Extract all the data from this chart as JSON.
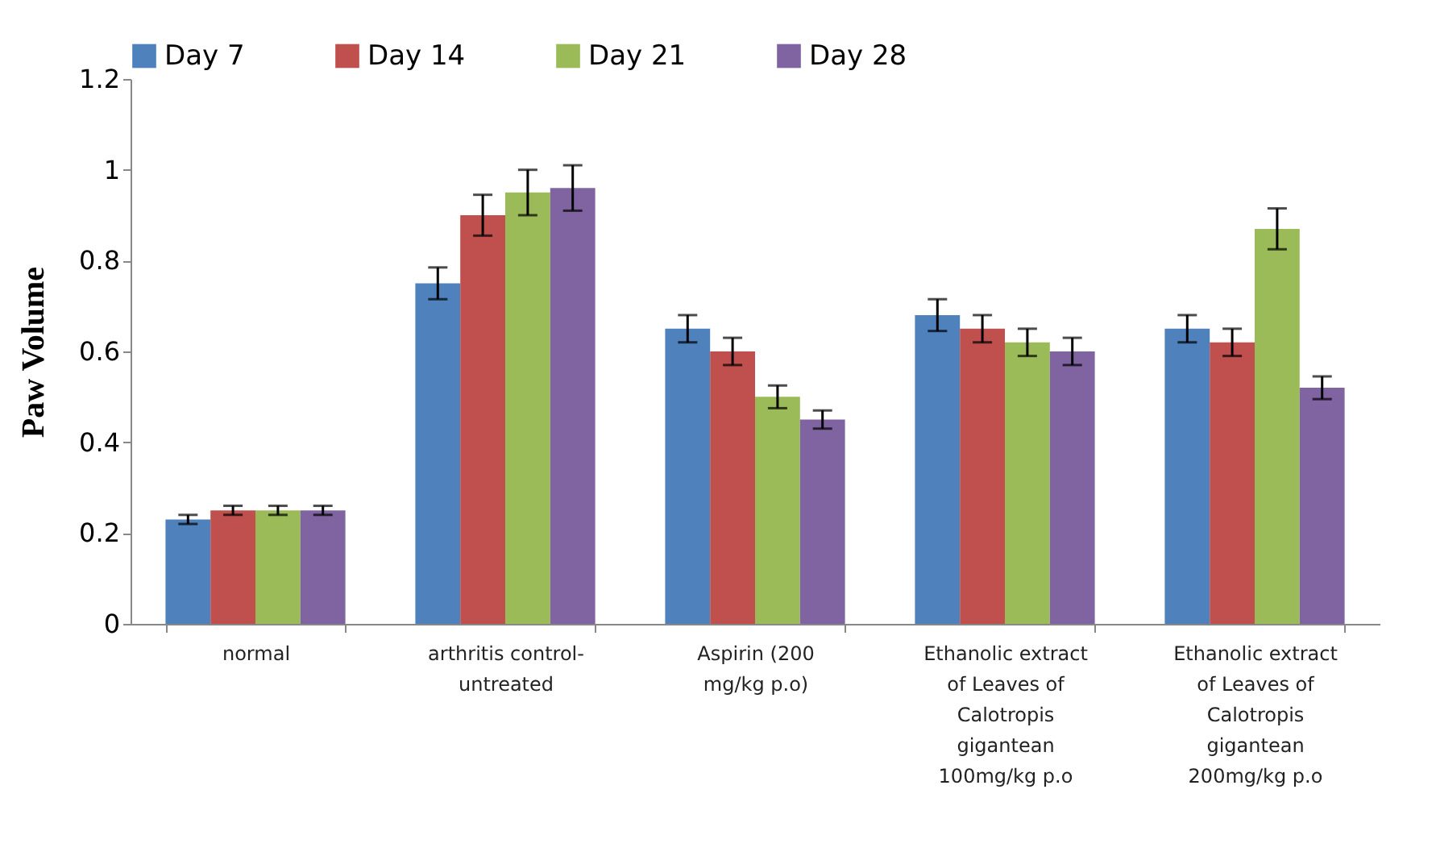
{
  "chart_data": {
    "type": "bar",
    "ylabel": "Paw Volume",
    "categories": [
      "normal",
      "arthritis control-\nuntreated",
      "Aspirin (200\nmg/kg p.o)",
      "Ethanolic  extract\nof Leaves of\nCalotropis\ngigantean\n100mg/kg p.o",
      "Ethanolic  extract\nof Leaves of\nCalotropis\ngigantean\n200mg/kg p.o"
    ],
    "series": [
      {
        "name": "Day 7",
        "color": "#4f81bd",
        "values": [
          0.23,
          0.75,
          0.65,
          0.68,
          0.65
        ],
        "errors": [
          0.01,
          0.035,
          0.03,
          0.035,
          0.03
        ]
      },
      {
        "name": "Day 14",
        "color": "#c0504d",
        "values": [
          0.25,
          0.9,
          0.6,
          0.65,
          0.62
        ],
        "errors": [
          0.01,
          0.045,
          0.03,
          0.03,
          0.03
        ]
      },
      {
        "name": "Day 21",
        "color": "#9bbb59",
        "values": [
          0.25,
          0.95,
          0.5,
          0.62,
          0.87
        ],
        "errors": [
          0.01,
          0.05,
          0.025,
          0.03,
          0.045
        ]
      },
      {
        "name": "Day 28",
        "color": "#8064a2",
        "values": [
          0.25,
          0.96,
          0.45,
          0.6,
          0.52
        ],
        "errors": [
          0.01,
          0.05,
          0.02,
          0.03,
          0.025
        ]
      }
    ],
    "ylim": [
      0,
      1.2
    ],
    "yticks": [
      0,
      0.2,
      0.4,
      0.6,
      0.8,
      1,
      1.2
    ],
    "grid": false,
    "legend": "top"
  }
}
